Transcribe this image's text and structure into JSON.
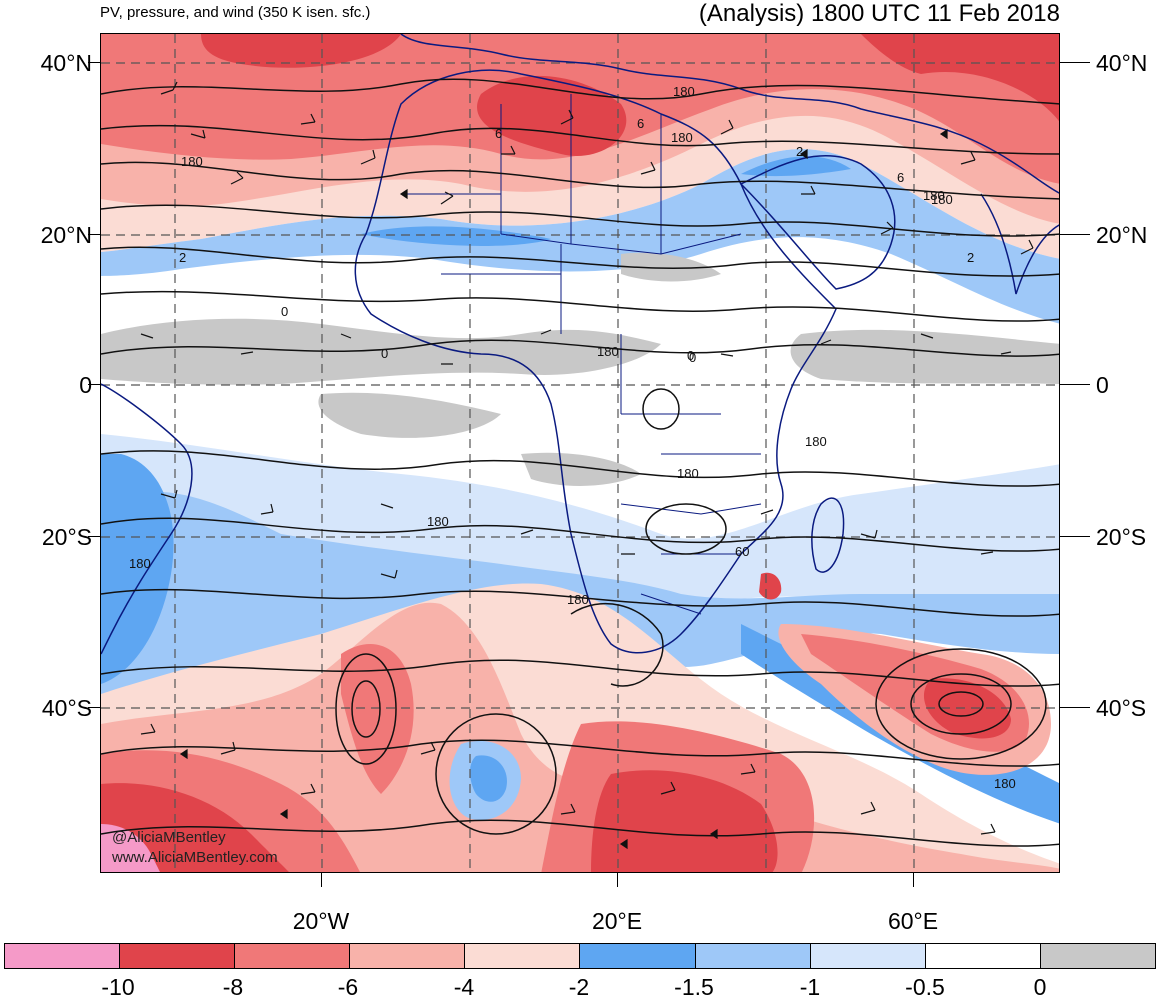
{
  "header": {
    "left_title": "PV, pressure, and wind (350 K isen. sfc.)",
    "right_title": "(Analysis) 1800 UTC 11 Feb 2018"
  },
  "map": {
    "projection": "cylindrical equidistant",
    "lat_labels": [
      "40°N",
      "20°N",
      "0",
      "20°S",
      "40°S"
    ],
    "lon_labels": [
      "20°W",
      "20°E",
      "60°E"
    ],
    "contour_labels": [
      "180",
      "6",
      "2",
      "0",
      "180",
      "6",
      "180",
      "2",
      "6",
      "180",
      "2",
      "0",
      "0",
      "180",
      "0",
      "180",
      "180",
      "180",
      "180",
      "180",
      "60",
      "180",
      "180"
    ],
    "credit_line_1": "@AliciaMBentley",
    "credit_line_2": "www.AliciaMBentley.com",
    "colors": {
      "coastline": "#0a1a80",
      "contour": "#111111",
      "grid": "#555555"
    }
  },
  "colorbar": {
    "swatch_colors": [
      "#f59ac8",
      "#e0444b",
      "#f07878",
      "#f8b2aa",
      "#fbdcd4",
      "#5ea6f2",
      "#9ec8f8",
      "#d6e6fb",
      "#ffffff",
      "#c8c8c8"
    ],
    "tick_labels": [
      "-10",
      "-8",
      "-6",
      "-4",
      "-2",
      "-1.5",
      "-1",
      "-0.5",
      "0"
    ]
  }
}
